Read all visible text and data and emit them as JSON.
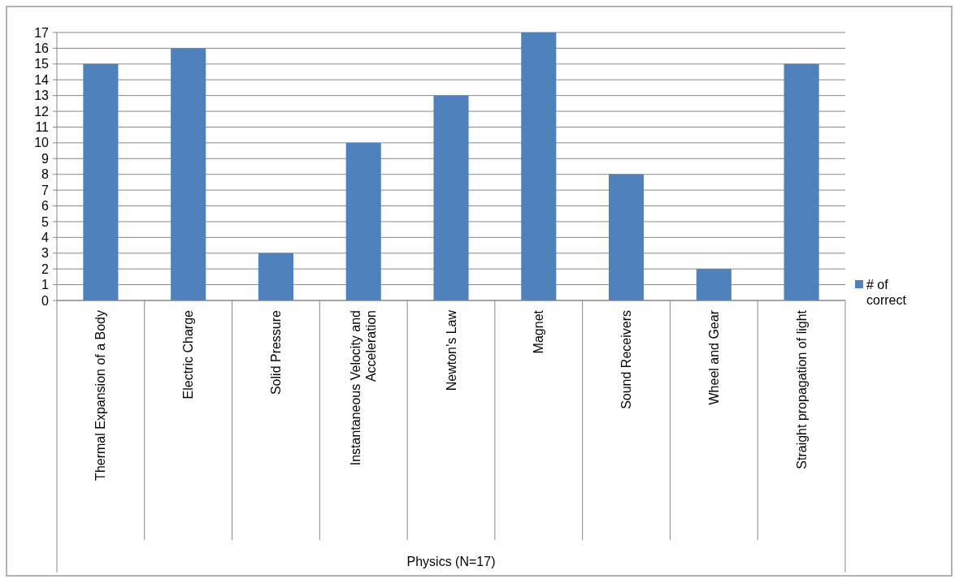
{
  "chart_data": {
    "type": "bar",
    "annotations": [
      "Physics (N=17)"
    ],
    "categories": [
      "Thermal Expansion of a Body",
      "Electric Charge",
      "Solid Pressure",
      "Instantaneous Velocity and Acceleration",
      "Newton’s Law",
      "Magnet",
      "Sound Receivers",
      "Wheel and Gear",
      "Straight propagation of light"
    ],
    "series": [
      {
        "name": "# of correct",
        "color": "#4f81bd",
        "values": [
          15,
          16,
          3,
          10,
          13,
          17,
          8,
          2,
          15
        ]
      }
    ],
    "ylim": [
      0,
      17
    ],
    "yticks": [
      0,
      1,
      2,
      3,
      4,
      5,
      6,
      7,
      8,
      9,
      10,
      11,
      12,
      13,
      14,
      15,
      16,
      17
    ],
    "grid": "y",
    "legend": "right"
  }
}
